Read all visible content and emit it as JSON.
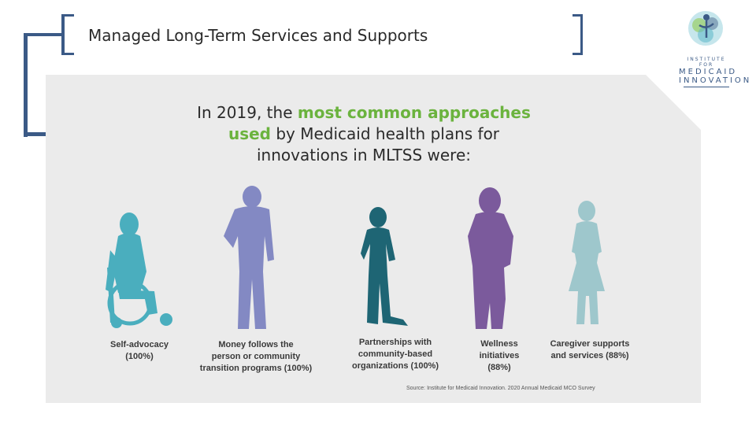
{
  "slide": {
    "title": "Managed Long-Term Services and Supports"
  },
  "logo": {
    "line1": "INSTITUTE FOR",
    "line2": "MEDICAID",
    "line3": "INNOVATION",
    "colors": {
      "blue": "#3b5a86",
      "teal": "#5bb6c9",
      "green": "#8cc63f"
    }
  },
  "infographic": {
    "headline": {
      "part1": "In 2019, the ",
      "highlight1": "most common approaches",
      "highlight2": "used",
      "part2": " by Medicaid health plans for",
      "line3": "innovations in MLTSS were:"
    },
    "approaches": [
      {
        "line1": "Self-advocacy",
        "line2": "(100%)",
        "line3": "",
        "percent": 100,
        "color": "#4aaebe"
      },
      {
        "line1": "Money follows the",
        "line2": "person or community",
        "line3": "transition programs (100%)",
        "percent": 100,
        "color": "#8389c3"
      },
      {
        "line1": "Partnerships with",
        "line2": "community-based",
        "line3": "organizations (100%)",
        "percent": 100,
        "color": "#1e6574"
      },
      {
        "line1": "Wellness",
        "line2": "initiatives",
        "line3": "(88%)",
        "percent": 88,
        "color": "#7b5a9c"
      },
      {
        "line1": "Caregiver supports",
        "line2": "and services (88%)",
        "line3": "",
        "percent": 88,
        "color": "#9ec7cc"
      }
    ],
    "source": "Source: Institute for Medicaid Innovation. 2020 Annual Medicaid MCO Survey"
  }
}
